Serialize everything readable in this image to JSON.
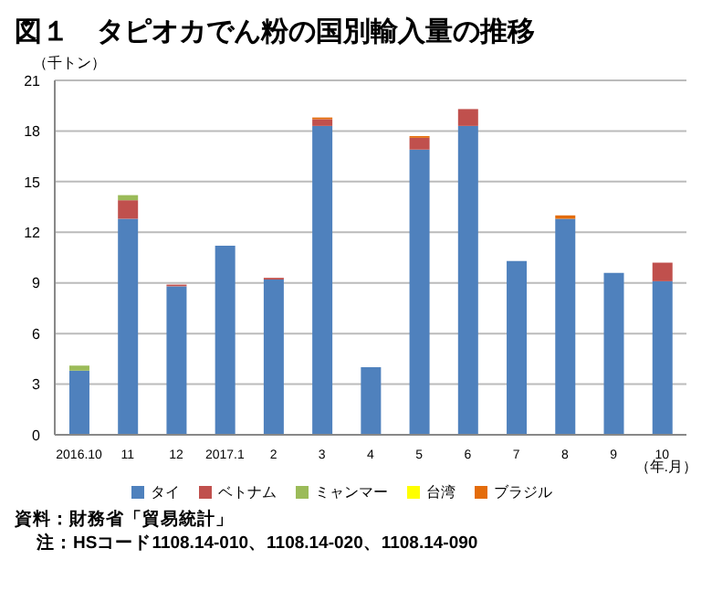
{
  "chart_data": {
    "type": "bar",
    "title": "図１　タピオカでん粉の国別輸入量の推移",
    "ylabel": "（千トン）",
    "xlabel": "（年.月）",
    "stacked": true,
    "grid": "y",
    "legend": "bottom",
    "categories": [
      "2016.10",
      "11",
      "12",
      "2017.1",
      "2",
      "3",
      "4",
      "5",
      "6",
      "7",
      "8",
      "9",
      "10"
    ],
    "series": [
      {
        "name": "タイ",
        "color": "#4f81bd",
        "values": [
          3.8,
          12.8,
          8.8,
          11.2,
          9.2,
          18.3,
          4.0,
          16.9,
          18.3,
          10.3,
          12.8,
          9.6,
          9.1
        ]
      },
      {
        "name": "ベトナム",
        "color": "#c0504d",
        "values": [
          0,
          1.1,
          0.1,
          0,
          0.1,
          0.4,
          0,
          0.7,
          1.0,
          0,
          0,
          0,
          1.1
        ]
      },
      {
        "name": "ミャンマー",
        "color": "#9bbb59",
        "values": [
          0.3,
          0.3,
          0,
          0,
          0,
          0,
          0,
          0,
          0,
          0,
          0,
          0,
          0
        ]
      },
      {
        "name": "台湾",
        "color": "#ffff00",
        "values": [
          0,
          0,
          0,
          0,
          0,
          0,
          0,
          0,
          0,
          0,
          0,
          0,
          0
        ]
      },
      {
        "name": "ブラジル",
        "color": "#e46c0a",
        "values": [
          0,
          0,
          0,
          0,
          0,
          0.1,
          0,
          0.1,
          0,
          0,
          0.2,
          0,
          0
        ]
      }
    ],
    "ylim": [
      0,
      21
    ],
    "yticks": [
      0,
      3,
      6,
      9,
      12,
      15,
      18,
      21
    ],
    "annotations": [
      "資料：財務省「貿易統計」",
      "注：HSコード1108.14-010、1108.14-020、1108.14-090"
    ]
  }
}
